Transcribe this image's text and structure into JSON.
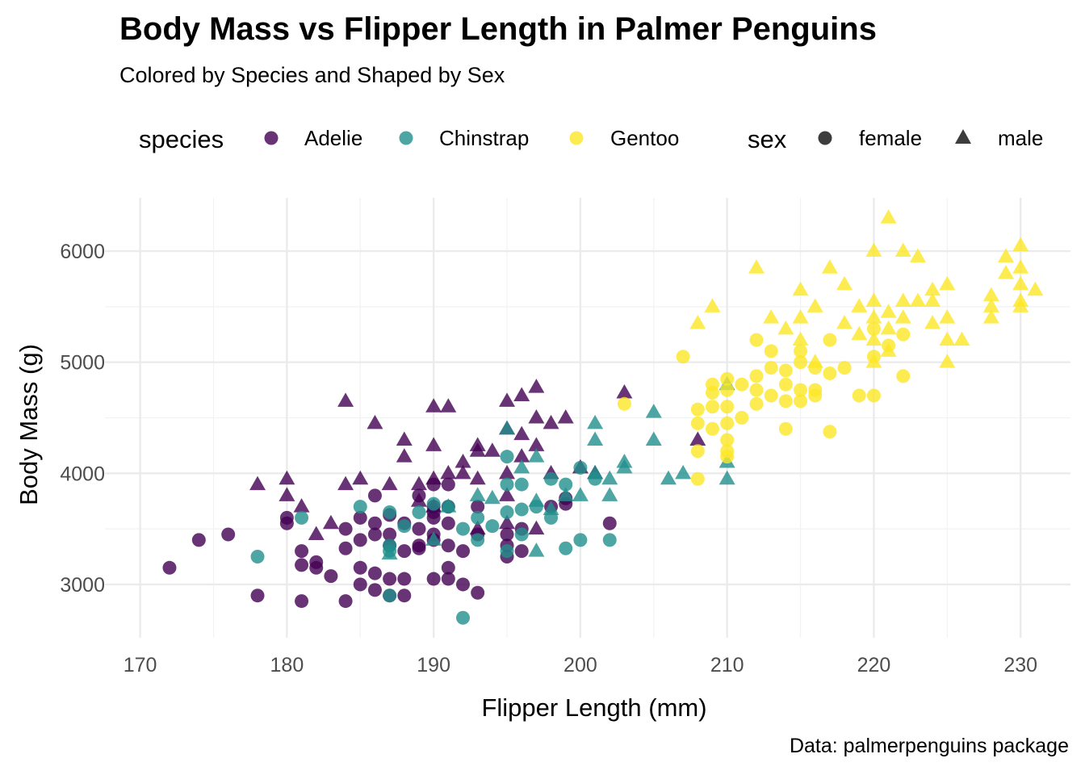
{
  "chart_data": {
    "type": "scatter",
    "title": "Body Mass vs Flipper Length in Palmer Penguins",
    "subtitle": "Colored by Species and Shaped by Sex",
    "caption": "Data: palmerpenguins package",
    "xlabel": "Flipper Length (mm)",
    "ylabel": "Body Mass (g)",
    "xlim": [
      167.6,
      233.4
    ],
    "ylim": [
      2520,
      6480
    ],
    "x_ticks": [
      170,
      180,
      190,
      200,
      210,
      220,
      230
    ],
    "x_tick_labels": [
      "170",
      "180",
      "190",
      "200",
      "210",
      "220",
      "230"
    ],
    "y_ticks": [
      3000,
      4000,
      5000,
      6000
    ],
    "y_tick_labels": [
      "3000",
      "4000",
      "5000",
      "6000"
    ],
    "grid": true,
    "legend_position": "top",
    "legend": {
      "species_title": "species",
      "species": [
        {
          "label": "Adelie",
          "color": "#440154"
        },
        {
          "label": "Chinstrap",
          "color": "#21908C"
        },
        {
          "label": "Gentoo",
          "color": "#FDE725"
        }
      ],
      "sex_title": "sex",
      "sex": [
        {
          "label": "female",
          "shape": "circle"
        },
        {
          "label": "male",
          "shape": "triangle"
        }
      ]
    },
    "series": [
      {
        "species": "Adelie",
        "sex": "female",
        "color": "#440154",
        "shape": "circle",
        "points": [
          [
            172,
            3150
          ],
          [
            174,
            3400
          ],
          [
            176,
            3450
          ],
          [
            178,
            2900
          ],
          [
            180,
            3550
          ],
          [
            180,
            3600
          ],
          [
            181,
            2850
          ],
          [
            181,
            3300
          ],
          [
            181,
            3175
          ],
          [
            182,
            3200
          ],
          [
            182,
            3150
          ],
          [
            183,
            3075
          ],
          [
            184,
            2850
          ],
          [
            184,
            3325
          ],
          [
            184,
            3500
          ],
          [
            185,
            3000
          ],
          [
            185,
            3150
          ],
          [
            185,
            3400
          ],
          [
            185,
            3600
          ],
          [
            186,
            2950
          ],
          [
            186,
            3100
          ],
          [
            186,
            3450
          ],
          [
            186,
            3550
          ],
          [
            186,
            3800
          ],
          [
            187,
            2900
          ],
          [
            187,
            3050
          ],
          [
            187,
            3350
          ],
          [
            187,
            3450
          ],
          [
            187,
            3625
          ],
          [
            188,
            2900
          ],
          [
            188,
            3050
          ],
          [
            188,
            3300
          ],
          [
            188,
            3550
          ],
          [
            189,
            3350
          ],
          [
            189,
            3500
          ],
          [
            189,
            3800
          ],
          [
            189,
            3325
          ],
          [
            190,
            3050
          ],
          [
            190,
            3400
          ],
          [
            190,
            3450
          ],
          [
            190,
            3650
          ],
          [
            190,
            3700
          ],
          [
            190,
            3600
          ],
          [
            190,
            3900
          ],
          [
            191,
            3050
          ],
          [
            191,
            3150
          ],
          [
            191,
            3350
          ],
          [
            191,
            3550
          ],
          [
            191,
            3700
          ],
          [
            191,
            3900
          ],
          [
            192,
            3000
          ],
          [
            192,
            3300
          ],
          [
            193,
            2925
          ],
          [
            193,
            3450
          ],
          [
            193,
            3700
          ],
          [
            195,
            3250
          ],
          [
            195,
            3350
          ],
          [
            195,
            3450
          ],
          [
            196,
            3300
          ],
          [
            196,
            3500
          ],
          [
            198,
            3700
          ],
          [
            199,
            3725
          ],
          [
            199,
            3775
          ],
          [
            202,
            3550
          ]
        ]
      },
      {
        "species": "Adelie",
        "sex": "male",
        "color": "#440154",
        "shape": "triangle",
        "points": [
          [
            178,
            3900
          ],
          [
            180,
            3950
          ],
          [
            180,
            3800
          ],
          [
            181,
            3700
          ],
          [
            182,
            3450
          ],
          [
            183,
            3550
          ],
          [
            184,
            3900
          ],
          [
            184,
            4650
          ],
          [
            185,
            3950
          ],
          [
            186,
            4450
          ],
          [
            187,
            3900
          ],
          [
            188,
            4300
          ],
          [
            188,
            4150
          ],
          [
            189,
            3900
          ],
          [
            189,
            3750
          ],
          [
            190,
            4600
          ],
          [
            190,
            4250
          ],
          [
            190,
            3950
          ],
          [
            190,
            3700
          ],
          [
            191,
            4600
          ],
          [
            191,
            4000
          ],
          [
            192,
            4100
          ],
          [
            192,
            4000
          ],
          [
            193,
            4250
          ],
          [
            193,
            4200
          ],
          [
            193,
            3950
          ],
          [
            193,
            3500
          ],
          [
            194,
            4200
          ],
          [
            195,
            4650
          ],
          [
            195,
            4400
          ],
          [
            195,
            4000
          ],
          [
            195,
            3800
          ],
          [
            195,
            3550
          ],
          [
            196,
            4700
          ],
          [
            196,
            4350
          ],
          [
            196,
            4150
          ],
          [
            197,
            4775
          ],
          [
            197,
            4500
          ],
          [
            197,
            4250
          ],
          [
            197,
            3500
          ],
          [
            198,
            4450
          ],
          [
            198,
            4000
          ],
          [
            199,
            4500
          ],
          [
            200,
            4050
          ],
          [
            201,
            4000
          ],
          [
            203,
            4725
          ],
          [
            208,
            4300
          ]
        ]
      },
      {
        "species": "Chinstrap",
        "sex": "female",
        "color": "#21908C",
        "shape": "circle",
        "points": [
          [
            178,
            3250
          ],
          [
            181,
            3600
          ],
          [
            185,
            3700
          ],
          [
            187,
            2900
          ],
          [
            187,
            3300
          ],
          [
            187,
            3350
          ],
          [
            187,
            3650
          ],
          [
            188,
            3525
          ],
          [
            189,
            3650
          ],
          [
            190,
            3725
          ],
          [
            191,
            3700
          ],
          [
            192,
            2700
          ],
          [
            192,
            3500
          ],
          [
            193,
            3400
          ],
          [
            193,
            3600
          ],
          [
            194,
            3525
          ],
          [
            195,
            3300
          ],
          [
            195,
            3650
          ],
          [
            195,
            3900
          ],
          [
            195,
            4150
          ],
          [
            196,
            3450
          ],
          [
            196,
            3675
          ],
          [
            196,
            3900
          ],
          [
            197,
            3700
          ],
          [
            198,
            3950
          ],
          [
            198,
            3600
          ],
          [
            199,
            3900
          ],
          [
            199,
            3325
          ],
          [
            200,
            3400
          ],
          [
            200,
            4050
          ],
          [
            201,
            3950
          ],
          [
            202,
            3400
          ]
        ]
      },
      {
        "species": "Chinstrap",
        "sex": "male",
        "color": "#21908C",
        "shape": "triangle",
        "points": [
          [
            187,
            3275
          ],
          [
            190,
            3400
          ],
          [
            191,
            3700
          ],
          [
            193,
            3800
          ],
          [
            194,
            3775
          ],
          [
            195,
            4400
          ],
          [
            196,
            4050
          ],
          [
            197,
            3300
          ],
          [
            197,
            3750
          ],
          [
            197,
            4150
          ],
          [
            198,
            3675
          ],
          [
            199,
            3800
          ],
          [
            200,
            3800
          ],
          [
            201,
            4450
          ],
          [
            201,
            4300
          ],
          [
            201,
            4000
          ],
          [
            202,
            3950
          ],
          [
            202,
            3800
          ],
          [
            203,
            4100
          ],
          [
            203,
            4050
          ],
          [
            205,
            4550
          ],
          [
            205,
            4300
          ],
          [
            206,
            3950
          ],
          [
            207,
            4000
          ],
          [
            210,
            4800
          ],
          [
            210,
            4100
          ],
          [
            210,
            3950
          ]
        ]
      },
      {
        "species": "Gentoo",
        "sex": "female",
        "color": "#FDE725",
        "shape": "circle",
        "points": [
          [
            203,
            4625
          ],
          [
            207,
            5050
          ],
          [
            208,
            3950
          ],
          [
            208,
            4200
          ],
          [
            208,
            4450
          ],
          [
            208,
            4575
          ],
          [
            209,
            4400
          ],
          [
            209,
            4600
          ],
          [
            209,
            4800
          ],
          [
            209,
            4725
          ],
          [
            210,
            4150
          ],
          [
            210,
            4200
          ],
          [
            210,
            4300
          ],
          [
            210,
            4450
          ],
          [
            210,
            4600
          ],
          [
            210,
            4750
          ],
          [
            210,
            4850
          ],
          [
            211,
            4500
          ],
          [
            211,
            4800
          ],
          [
            212,
            4625
          ],
          [
            212,
            4750
          ],
          [
            212,
            4875
          ],
          [
            212,
            5200
          ],
          [
            213,
            4700
          ],
          [
            213,
            4950
          ],
          [
            213,
            5100
          ],
          [
            214,
            4400
          ],
          [
            214,
            4650
          ],
          [
            214,
            4800
          ],
          [
            214,
            4925
          ],
          [
            215,
            4650
          ],
          [
            215,
            4750
          ],
          [
            215,
            5000
          ],
          [
            215,
            5100
          ],
          [
            216,
            4700
          ],
          [
            216,
            4750
          ],
          [
            216,
            4950
          ],
          [
            217,
            4375
          ],
          [
            217,
            4900
          ],
          [
            217,
            5200
          ],
          [
            218,
            4950
          ],
          [
            219,
            4700
          ],
          [
            220,
            4700
          ],
          [
            220,
            5050
          ],
          [
            220,
            5300
          ],
          [
            221,
            5150
          ],
          [
            222,
            4875
          ],
          [
            222,
            5250
          ]
        ]
      },
      {
        "species": "Gentoo",
        "sex": "male",
        "color": "#FDE725",
        "shape": "triangle",
        "points": [
          [
            208,
            5350
          ],
          [
            209,
            5500
          ],
          [
            212,
            5850
          ],
          [
            213,
            5400
          ],
          [
            214,
            5300
          ],
          [
            215,
            5650
          ],
          [
            215,
            5400
          ],
          [
            215,
            5200
          ],
          [
            216,
            5500
          ],
          [
            216,
            5000
          ],
          [
            217,
            5850
          ],
          [
            218,
            5700
          ],
          [
            218,
            5350
          ],
          [
            219,
            5500
          ],
          [
            219,
            5250
          ],
          [
            220,
            6000
          ],
          [
            220,
            5550
          ],
          [
            220,
            5400
          ],
          [
            220,
            5200
          ],
          [
            220,
            5000
          ],
          [
            221,
            6300
          ],
          [
            221,
            5450
          ],
          [
            221,
            5300
          ],
          [
            221,
            5100
          ],
          [
            222,
            6000
          ],
          [
            222,
            5550
          ],
          [
            222,
            5400
          ],
          [
            223,
            5950
          ],
          [
            223,
            5550
          ],
          [
            224,
            5650
          ],
          [
            224,
            5350
          ],
          [
            224,
            5550
          ],
          [
            225,
            5700
          ],
          [
            225,
            5400
          ],
          [
            225,
            5000
          ],
          [
            225,
            5200
          ],
          [
            226,
            5200
          ],
          [
            228,
            5600
          ],
          [
            228,
            5500
          ],
          [
            228,
            5400
          ],
          [
            229,
            5950
          ],
          [
            229,
            5800
          ],
          [
            230,
            6050
          ],
          [
            230,
            5850
          ],
          [
            230,
            5700
          ],
          [
            230,
            5550
          ],
          [
            230,
            5500
          ],
          [
            231,
            5650
          ]
        ]
      }
    ]
  }
}
